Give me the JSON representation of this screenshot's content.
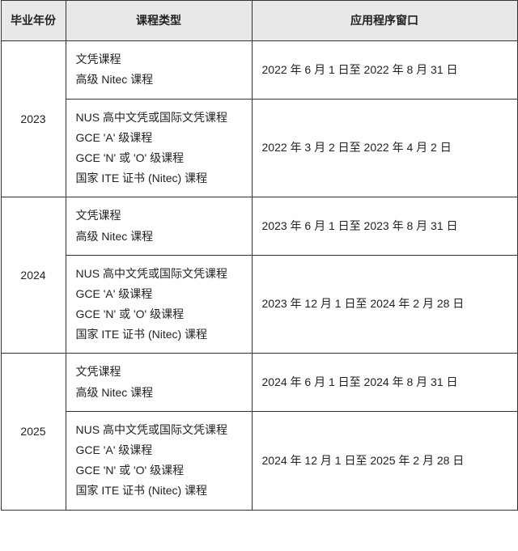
{
  "headers": {
    "year": "毕业年份",
    "type": "课程类型",
    "window": "应用程序窗口"
  },
  "rows": [
    {
      "year": "2023",
      "groups": [
        {
          "types": [
            "文凭课程",
            "高级 Nitec 课程"
          ],
          "window": "2022 年 6 月 1 日至 2022 年 8 月 31 日"
        },
        {
          "types": [
            "NUS 高中文凭或国际文凭课程",
            "GCE 'A' 级课程",
            "GCE 'N' 或 'O' 级课程",
            "国家 ITE 证书 (Nitec) 课程"
          ],
          "window": "2022 年 3 月 2 日至 2022 年 4 月 2 日"
        }
      ]
    },
    {
      "year": "2024",
      "groups": [
        {
          "types": [
            "文凭课程",
            "高级 Nitec 课程"
          ],
          "window": "2023 年 6 月 1 日至 2023 年 8 月 31 日"
        },
        {
          "types": [
            "NUS 高中文凭或国际文凭课程",
            "GCE 'A' 级课程",
            "GCE 'N' 或 'O' 级课程",
            "国家 ITE 证书 (Nitec) 课程"
          ],
          "window": "2023 年 12 月 1 日至 2024 年 2 月 28 日"
        }
      ]
    },
    {
      "year": "2025",
      "groups": [
        {
          "types": [
            "文凭课程",
            "高级 Nitec 课程"
          ],
          "window": "2024 年 6 月 1 日至 2024 年 8 月 31 日"
        },
        {
          "types": [
            "NUS 高中文凭或国际文凭课程",
            "GCE 'A' 级课程",
            "GCE 'N' 或 'O' 级课程",
            "国家 ITE 证书 (Nitec) 课程"
          ],
          "window": "2024 年 12 月 1 日至 2025 年 2 月 28 日"
        }
      ]
    }
  ],
  "style": {
    "header_bg": "#e8e8e8",
    "border_color": "#333333",
    "text_color": "#222222",
    "font_size": 14,
    "line_height": 1.8
  }
}
